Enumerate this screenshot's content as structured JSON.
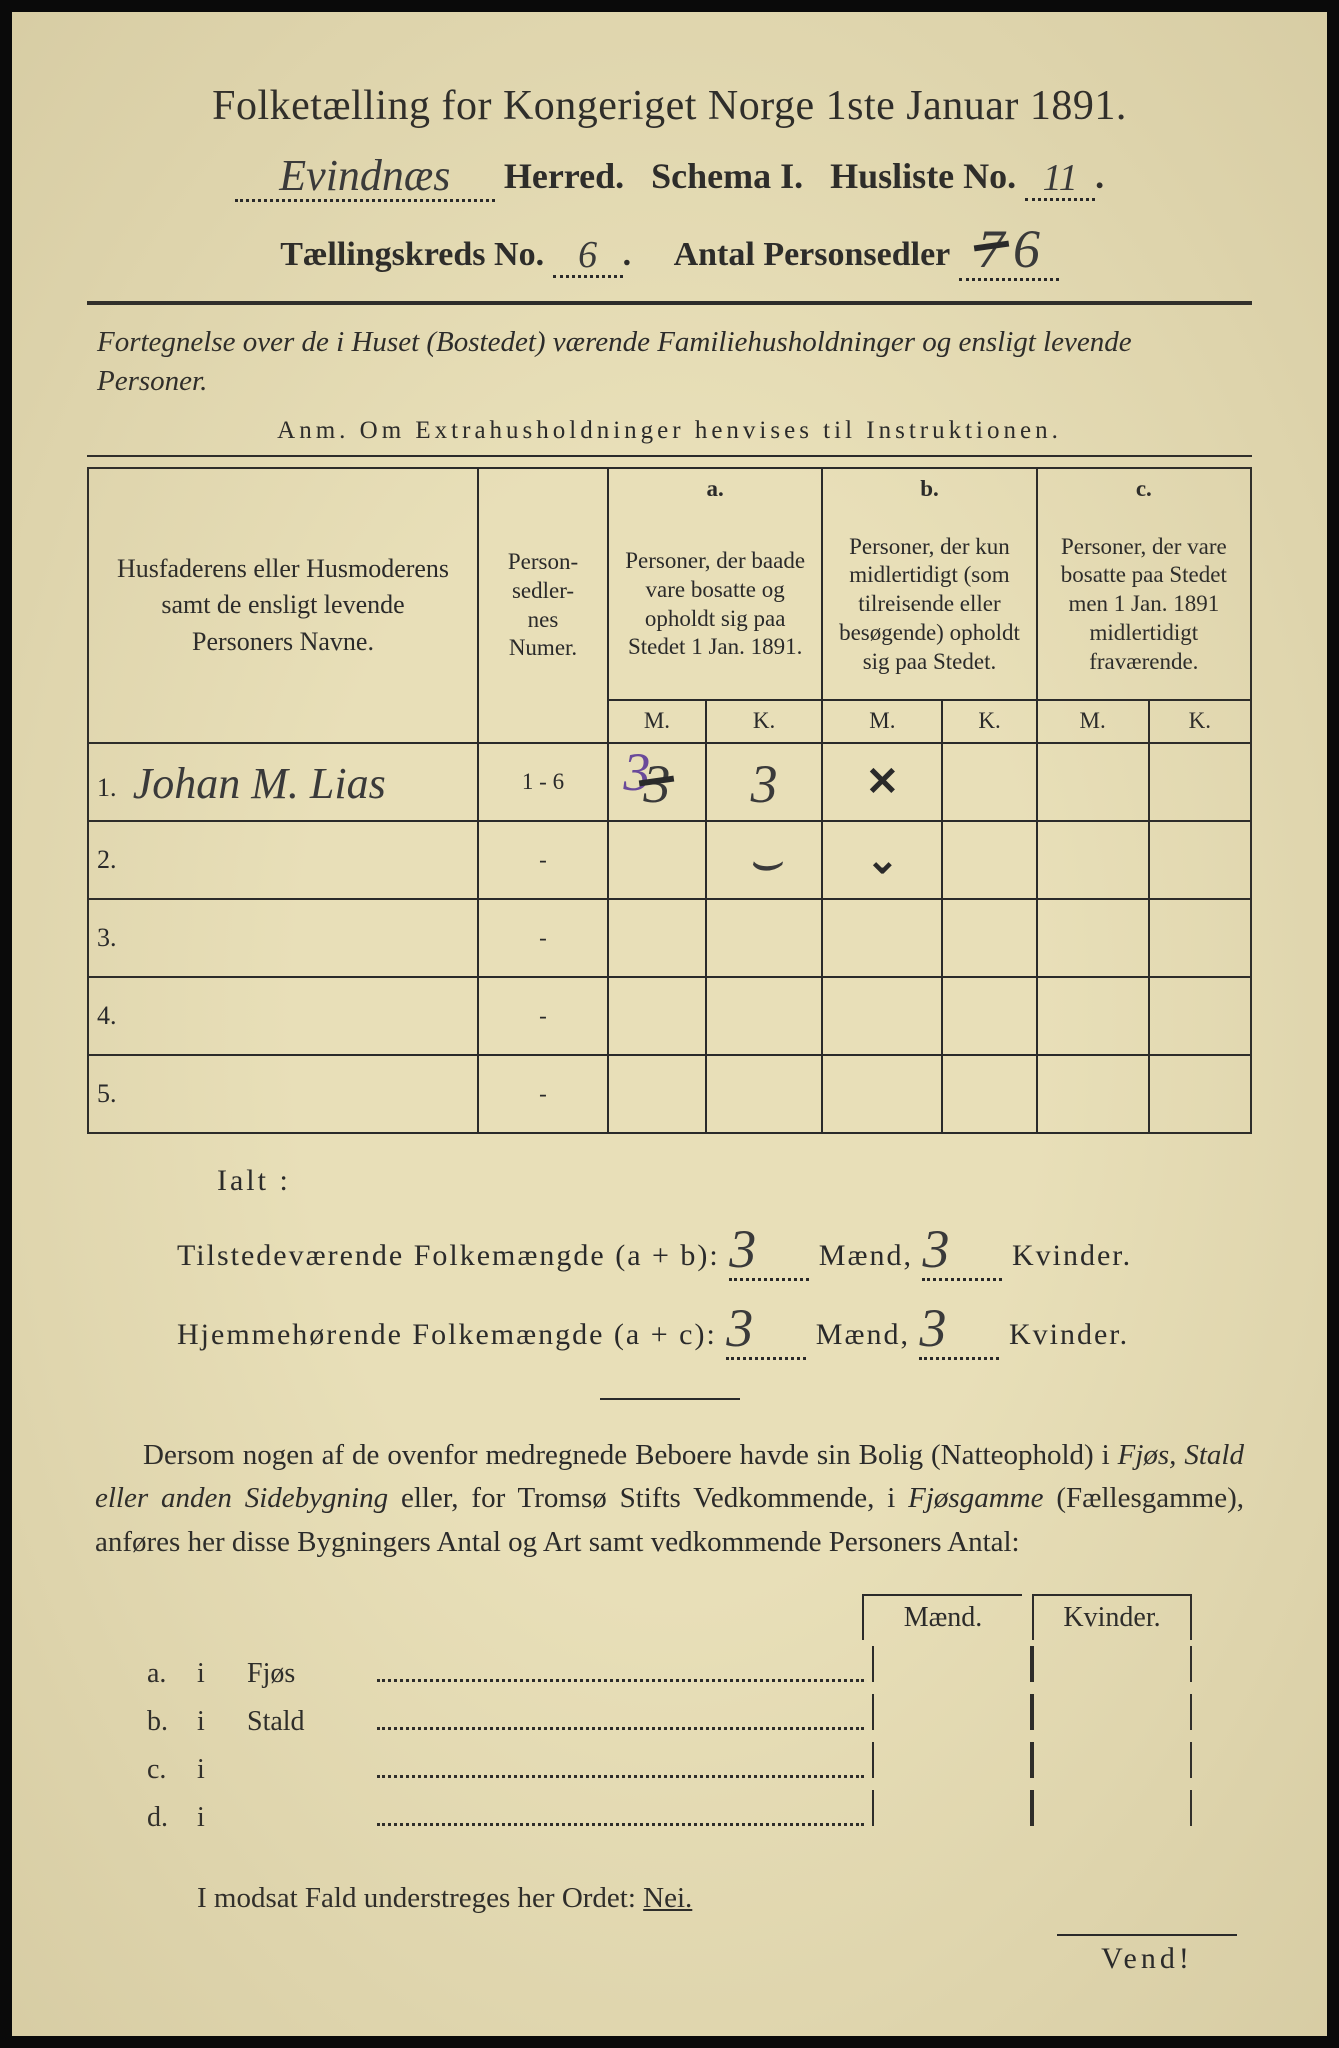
{
  "title": "Folketælling for Kongeriget Norge 1ste Januar 1891.",
  "line2": {
    "herred_hw": "Evindnæs",
    "herred_label": "Herred.",
    "schema": "Schema I.",
    "husliste_label": "Husliste No.",
    "husliste_hw": "11"
  },
  "line3": {
    "kreds_label": "Tællingskreds No.",
    "kreds_hw": "6",
    "antal_label": "Antal Personsedler",
    "antal_hw_struck": "7",
    "antal_hw": "6"
  },
  "subtitle": "Fortegnelse over de i Huset (Bostedet) værende Familiehusholdninger og ensligt levende Personer.",
  "anm": "Anm. Om Extrahusholdninger henvises til Instruktionen.",
  "columns": {
    "name": "Husfaderens eller Husmoderens samt de ensligt levende Personers Navne.",
    "numer": "Person-\nsedler-\nnes\nNumer.",
    "a_label": "a.",
    "a_text": "Personer, der baade vare bosatte og opholdt sig paa Stedet 1 Jan. 1891.",
    "b_label": "b.",
    "b_text": "Personer, der kun midlertidigt (som tilreisende eller besøgende) opholdt sig paa Stedet.",
    "c_label": "c.",
    "c_text": "Personer, der vare bosatte paa Stedet men 1 Jan. 1891 midlertidigt fraværende.",
    "m": "M.",
    "k": "K."
  },
  "rows": [
    {
      "n": "1.",
      "name_hw": "Johan M. Lias",
      "numer": "1 - 6",
      "a_m_purple": "3",
      "a_m": "3",
      "a_k": "3",
      "b_m": "✕",
      "b_k": "",
      "c_m": "",
      "c_k": ""
    },
    {
      "n": "2.",
      "name_hw": "",
      "numer": "-",
      "a_m": "",
      "a_k": "⌣",
      "b_m": "⌄",
      "b_k": "",
      "c_m": "",
      "c_k": ""
    },
    {
      "n": "3.",
      "name_hw": "",
      "numer": "-",
      "a_m": "",
      "a_k": "",
      "b_m": "",
      "b_k": "",
      "c_m": "",
      "c_k": ""
    },
    {
      "n": "4.",
      "name_hw": "",
      "numer": "-",
      "a_m": "",
      "a_k": "",
      "b_m": "",
      "b_k": "",
      "c_m": "",
      "c_k": ""
    },
    {
      "n": "5.",
      "name_hw": "",
      "numer": "-",
      "a_m": "",
      "a_k": "",
      "b_m": "",
      "b_k": "",
      "c_m": "",
      "c_k": ""
    }
  ],
  "totals": {
    "ialt": "Ialt :",
    "tilstede_label": "Tilstedeværende Folkemængde (a + b):",
    "tilstede_m": "3",
    "tilstede_k": "3",
    "hjemme_label": "Hjemmehørende Folkemængde (a + c):",
    "hjemme_m": "3",
    "hjemme_k": "3",
    "maend": "Mænd,",
    "kvinder": "Kvinder."
  },
  "bodytext": "Dersom nogen af de ovenfor medregnede Beboere havde sin Bolig (Natteophold) i Fjøs, Stald eller anden Sidebygning eller, for Tromsø Stifts Vedkommende, i Fjøsgamme (Fællesgamme), anføres her disse Bygningers Antal og Art samt vedkommende Personers Antal:",
  "buildings": {
    "maend": "Mænd.",
    "kvinder": "Kvinder.",
    "rows": [
      {
        "l": "a.",
        "i": "i",
        "name": "Fjøs"
      },
      {
        "l": "b.",
        "i": "i",
        "name": "Stald"
      },
      {
        "l": "c.",
        "i": "i",
        "name": ""
      },
      {
        "l": "d.",
        "i": "i",
        "name": ""
      }
    ]
  },
  "nei_line_prefix": "I modsat Fald understreges her Ordet:",
  "nei": "Nei.",
  "vend": "Vend!"
}
